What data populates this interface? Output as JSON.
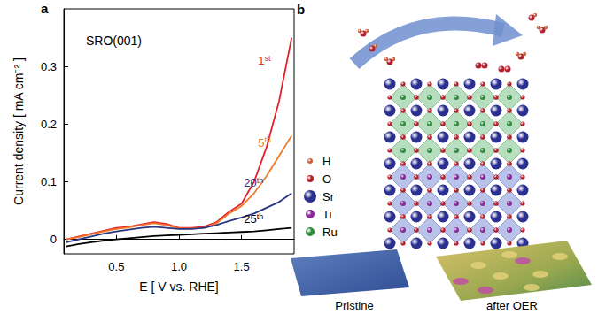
{
  "chart_data": {
    "type": "line",
    "panel_label": "a",
    "annotation": "SRO(001)",
    "x_label": "E [ V vs. RHE]",
    "y_label": "Current density [ mA cm⁻² ]",
    "x": [
      0.1,
      0.2,
      0.3,
      0.4,
      0.5,
      0.6,
      0.7,
      0.8,
      0.9,
      1.0,
      1.1,
      1.2,
      1.3,
      1.4,
      1.5,
      1.6,
      1.7,
      1.8,
      1.9
    ],
    "series": [
      {
        "name": "1st",
        "color": "#e3222b",
        "values": [
          0.0,
          0.005,
          0.01,
          0.015,
          0.02,
          0.022,
          0.026,
          0.03,
          0.027,
          0.02,
          0.02,
          0.022,
          0.03,
          0.048,
          0.062,
          0.1,
          0.16,
          0.24,
          0.35
        ]
      },
      {
        "name": "5th",
        "color": "#f07a2a",
        "values": [
          0.0,
          0.004,
          0.009,
          0.014,
          0.018,
          0.021,
          0.025,
          0.028,
          0.025,
          0.019,
          0.019,
          0.02,
          0.028,
          0.045,
          0.058,
          0.08,
          0.11,
          0.145,
          0.18
        ]
      },
      {
        "name": "20th",
        "color": "#2a3580",
        "values": [
          -0.005,
          0.0,
          0.005,
          0.01,
          0.014,
          0.017,
          0.02,
          0.022,
          0.02,
          0.018,
          0.018,
          0.02,
          0.025,
          0.032,
          0.038,
          0.045,
          0.055,
          0.065,
          0.08
        ]
      },
      {
        "name": "25th",
        "color": "#000000",
        "values": [
          -0.012,
          -0.008,
          -0.005,
          -0.002,
          0.0,
          0.002,
          0.004,
          0.006,
          0.007,
          0.008,
          0.009,
          0.01,
          0.011,
          0.012,
          0.013,
          0.014,
          0.016,
          0.018,
          0.02
        ]
      }
    ],
    "xlim": [
      0.08,
      1.92
    ],
    "xticks": [
      {
        "value": 0.5,
        "label": "0.5"
      },
      {
        "value": 1,
        "label": "1.0"
      },
      {
        "value": 1.5,
        "label": "1.5"
      }
    ],
    "ylim": [
      -0.025,
      0.4
    ],
    "yticks": [
      0,
      0.1,
      0.2,
      0.3
    ],
    "grid": false
  },
  "panel_b": {
    "panel_label": "b",
    "atoms": [
      {
        "symbol": "H",
        "color": "#c8603a"
      },
      {
        "symbol": "O",
        "color": "#b3202e"
      },
      {
        "symbol": "Sr",
        "color": "#2b2f8f"
      },
      {
        "symbol": "Ti",
        "color": "#8a2a9a"
      },
      {
        "symbol": "Ru",
        "color": "#2f8a3e"
      }
    ],
    "images": [
      "Pristine",
      "after OER"
    ]
  }
}
